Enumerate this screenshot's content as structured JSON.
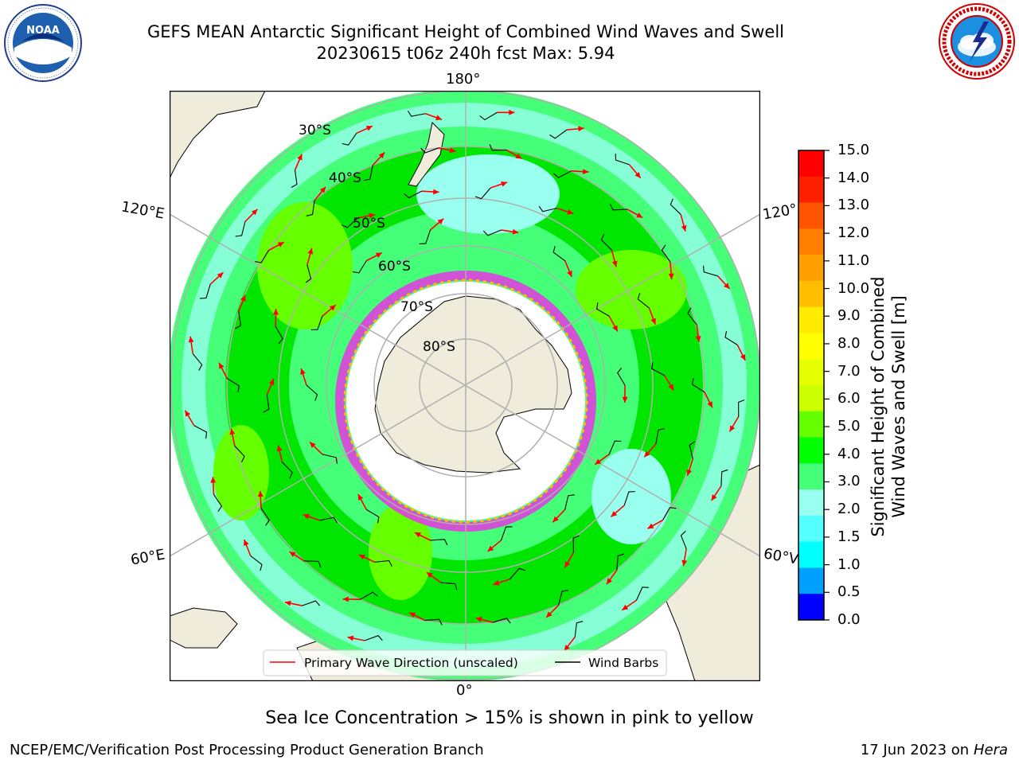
{
  "header": {
    "title_line1": "GEFS MEAN Antarctic Significant Height of Combined Wind Waves and Swell",
    "title_line2": "20230615 t06z 240h fcst   Max: 5.94"
  },
  "logos": {
    "left": {
      "text": "NOAA",
      "ring_text": "NATIONAL OCEANIC AND ATMOSPHERIC ADMINISTRATION · U.S. DEPARTMENT OF COMMERCE"
    },
    "right": {
      "ring_text": "NATIONAL WEATHER SERVICE"
    }
  },
  "map": {
    "projection": "south-polar-stereographic",
    "longitude_labels": {
      "top": "180°",
      "bottom": "0°",
      "upper_left": "120°E",
      "lower_left": "60°E",
      "upper_right": "120°",
      "lower_right": "60°V"
    },
    "latitude_labels": [
      "30°S",
      "40°S",
      "50°S",
      "60°S",
      "70°S",
      "80°S"
    ],
    "colors": {
      "land": "#efecdc",
      "ice_shelf": "#ffffff",
      "sea_ice": "#e040e0",
      "wave_arrow": "#ff0000",
      "wind_barb": "#000000",
      "gridline": "#b0b0b0"
    }
  },
  "legend": {
    "items": [
      {
        "label": "Primary Wave Direction (unscaled)",
        "color": "#ff0000"
      },
      {
        "label": "Wind Barbs",
        "color": "#000000"
      }
    ]
  },
  "colorbar": {
    "label_line1": "Significant Height of Combined",
    "label_line2": "Wind Waves and Swell [m]",
    "ticks": [
      "15.0",
      "14.0",
      "13.0",
      "12.0",
      "11.0",
      "10.0",
      "9.0",
      "8.0",
      "7.0",
      "6.0",
      "5.0",
      "4.0",
      "3.0",
      "2.0",
      "1.5",
      "1.0",
      "0.5",
      "0.0"
    ],
    "colors_top_to_bottom": [
      "#ff0000",
      "#ff2000",
      "#ff5500",
      "#ff7f00",
      "#ffa000",
      "#ffbf00",
      "#ffea00",
      "#ffff00",
      "#e6ff00",
      "#ccff00",
      "#66ff00",
      "#00ff00",
      "#44ff77",
      "#99ffee",
      "#55ffff",
      "#00ffff",
      "#00a0ff",
      "#0000ff"
    ]
  },
  "footer": {
    "caption": "Sea Ice Concentration > 15% is shown in pink to yellow",
    "credit": "NCEP/EMC/Verification Post Processing Product Generation Branch",
    "date": "17 Jun 2023 on",
    "host": "Hera"
  }
}
